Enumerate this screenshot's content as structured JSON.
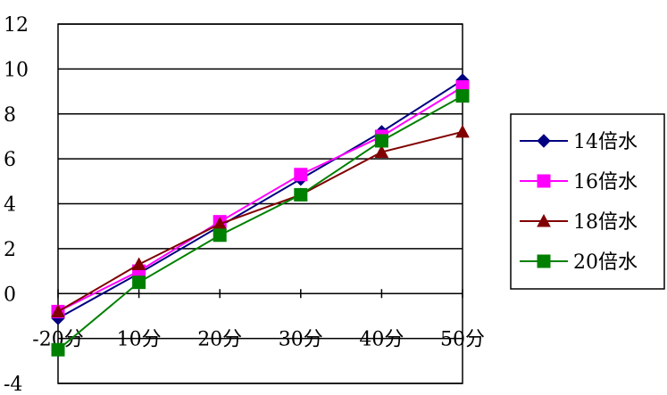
{
  "chart_data": {
    "type": "line",
    "categories": [
      "-20分",
      "10分",
      "20分",
      "30分",
      "40分",
      "50分"
    ],
    "ylim": [
      -4,
      12
    ],
    "yticks": [
      12,
      10,
      8,
      6,
      4,
      2,
      0,
      -2,
      -4
    ],
    "ytick_labels": [
      "12",
      "10",
      "8",
      "6",
      "4",
      "2",
      "0",
      "",
      "-4"
    ],
    "grid": true,
    "legend_position": "right",
    "series": [
      {
        "name": "14倍水",
        "values": [
          -1.1,
          0.9,
          3.0,
          5.1,
          7.2,
          9.5
        ],
        "color": "#000080",
        "marker": "diamond"
      },
      {
        "name": "16倍水",
        "values": [
          -0.8,
          1.0,
          3.2,
          5.3,
          7.0,
          9.2
        ],
        "color": "#ff00ff",
        "marker": "square"
      },
      {
        "name": "18倍水",
        "values": [
          -0.8,
          1.3,
          3.1,
          4.4,
          6.3,
          7.2
        ],
        "color": "#800000",
        "marker": "triangle"
      },
      {
        "name": "20倍水",
        "values": [
          -2.5,
          0.5,
          2.6,
          4.4,
          6.8,
          8.8
        ],
        "color": "#008000",
        "marker": "square"
      }
    ]
  }
}
